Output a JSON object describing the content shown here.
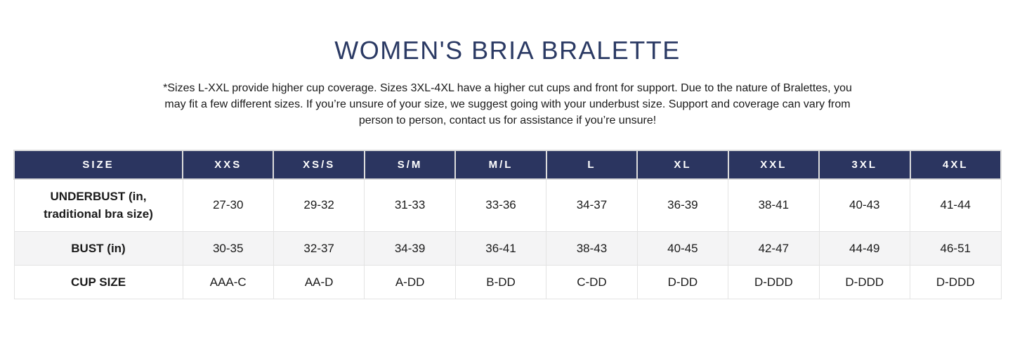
{
  "header": {
    "title": "WOMEN'S BRIA BRALETTE",
    "note": "*Sizes L-XXL provide higher cup coverage. Sizes 3XL-4XL have a higher cut cups and front for support. Due to the nature of Bralettes, you may fit a few different sizes. If you’re unsure of your size, we suggest going with your underbust size. Support and coverage can vary from person to person, contact us for assistance if you’re unsure!"
  },
  "table": {
    "columns": [
      "SIZE",
      "XXS",
      "XS/S",
      "S/M",
      "M/L",
      "L",
      "XL",
      "XXL",
      "3XL",
      "4XL"
    ],
    "rows": [
      {
        "label": "UNDERBUST (in, traditional bra size)",
        "values": [
          "27-30",
          "29-32",
          "31-33",
          "33-36",
          "34-37",
          "36-39",
          "38-41",
          "40-43",
          "41-44"
        ]
      },
      {
        "label": "BUST (in)",
        "values": [
          "30-35",
          "32-37",
          "34-39",
          "36-41",
          "38-43",
          "40-45",
          "42-47",
          "44-49",
          "46-51"
        ]
      },
      {
        "label": "CUP SIZE",
        "values": [
          "AAA-C",
          "AA-D",
          "A-DD",
          "B-DD",
          "C-DD",
          "D-DD",
          "D-DDD",
          "D-DDD",
          "D-DDD"
        ]
      }
    ]
  },
  "colors": {
    "header_bg": "#2b3560",
    "header_text": "#ffffff",
    "title_text": "#2b3a64",
    "body_text": "#1a1a1a",
    "alt_row_bg": "#f4f4f5",
    "cell_border": "#e3e3e3"
  }
}
